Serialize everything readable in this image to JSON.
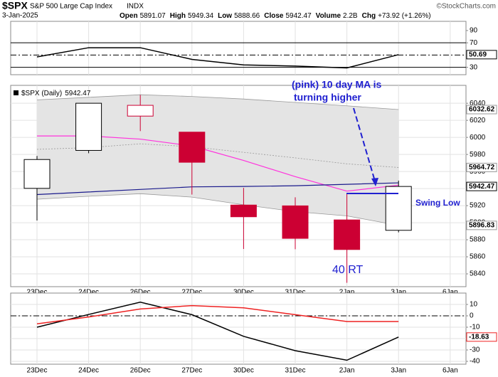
{
  "header": {
    "symbol": "$SPX",
    "name": "S&P 500 Large Cap Index",
    "exchange": "INDX",
    "credit": "©StockCharts.com",
    "date": "3-Jan-2025",
    "stats": [
      {
        "label": "Open",
        "value": 5891.07
      },
      {
        "label": "High",
        "value": 5949.34
      },
      {
        "label": "Low",
        "value": 5888.66
      },
      {
        "label": "Close",
        "value": 5942.47
      },
      {
        "label": "Volume",
        "value": "2.2B"
      },
      {
        "label": "Chg",
        "value": "+73.92 (+1.26%)"
      }
    ]
  },
  "chart_data": [
    {
      "type": "line",
      "ylim": [
        18,
        105
      ],
      "yticks": [
        90,
        70,
        50,
        30
      ],
      "grid": false,
      "reference_lines": [
        {
          "value": 70,
          "style": "solid"
        },
        {
          "value": 50,
          "style": "dashdot"
        },
        {
          "value": 30,
          "style": "solid"
        }
      ],
      "series": [
        {
          "color": "#000000",
          "values": [
            47,
            62,
            62,
            43,
            34,
            32,
            29,
            50.69,
            null
          ]
        }
      ]
    },
    {
      "type": "candlestick",
      "legend": "$SPX (Daily)",
      "ylim": [
        5825,
        6061
      ],
      "yticks": [
        6040,
        6020,
        6000,
        5980,
        5960,
        5940,
        5920,
        5900,
        5880,
        5860,
        5840
      ],
      "grid": true,
      "categories": [
        "23Dec",
        "24Dec",
        "26Dec",
        "27Dec",
        "30Dec",
        "31Dec",
        "2Jan",
        "3Jan",
        "6Jan"
      ],
      "open": [
        5940.25,
        5984.73,
        6024.97,
        6006.17,
        5920.67,
        5919.74,
        5903.26,
        5891.07,
        null
      ],
      "high": [
        5978.25,
        6040.1,
        6049.75,
        6006.17,
        5940.79,
        5929.74,
        5935.09,
        5949.34,
        null
      ],
      "low": [
        5902.57,
        5981.44,
        6007.37,
        5932.95,
        5869.16,
        5868.86,
        5829.53,
        5888.66,
        null
      ],
      "close": [
        5974.07,
        6040.04,
        6037.59,
        5970.84,
        5906.94,
        5881.63,
        5868.55,
        5942.47,
        null
      ],
      "up_color": "#000000",
      "down_color": "#cc0033",
      "band_color": "#e4e4e4",
      "lines": [
        {
          "color": "#999999",
          "style": "solid",
          "values": [
            6044,
            6047,
            6050,
            6048,
            6045,
            6041,
            6037,
            6032.62,
            null
          ]
        },
        {
          "color": "#999999",
          "style": "dotted",
          "values": [
            5986,
            5988,
            5992.5,
            5989,
            5982.5,
            5976,
            5969,
            5964.72,
            null
          ]
        },
        {
          "color": "#999999",
          "style": "solid",
          "values": [
            5927.5,
            5931,
            5934,
            5930,
            5921,
            5913,
            5908,
            5896.83,
            null
          ]
        },
        {
          "color": "#ff33dd",
          "style": "solid",
          "values": [
            6001.7,
            6001.7,
            5998,
            5990,
            5973,
            5954,
            5937,
            5944,
            null
          ]
        },
        {
          "color": "#1a1a8c",
          "style": "solid",
          "values": [
            5933,
            5936,
            5939,
            5942,
            5942.5,
            5943.3,
            5945,
            5946.7,
            null
          ]
        }
      ],
      "annotations": [
        "(pink) 10 day MA is",
        "turning higher",
        "Swing Low",
        "40 RT"
      ]
    },
    {
      "type": "line",
      "ylim": [
        -42.5,
        20
      ],
      "yticks": [
        10,
        0,
        -10,
        -20,
        -30,
        -40
      ],
      "grid": true,
      "categories": [
        "23Dec",
        "24Dec",
        "26Dec",
        "27Dec",
        "30Dec",
        "31Dec",
        "2Jan",
        "3Jan",
        "6Jan"
      ],
      "reference_lines": [
        {
          "value": 0,
          "style": "dashdot"
        }
      ],
      "series": [
        {
          "color": "#000000",
          "values": [
            -10,
            1.2,
            12,
            1,
            -18,
            -30.6,
            -39,
            -18.63,
            null
          ]
        },
        {
          "color": "#ee2222",
          "values": [
            -7,
            -1,
            6,
            9,
            7,
            1,
            -5,
            -5,
            null
          ]
        }
      ]
    }
  ]
}
